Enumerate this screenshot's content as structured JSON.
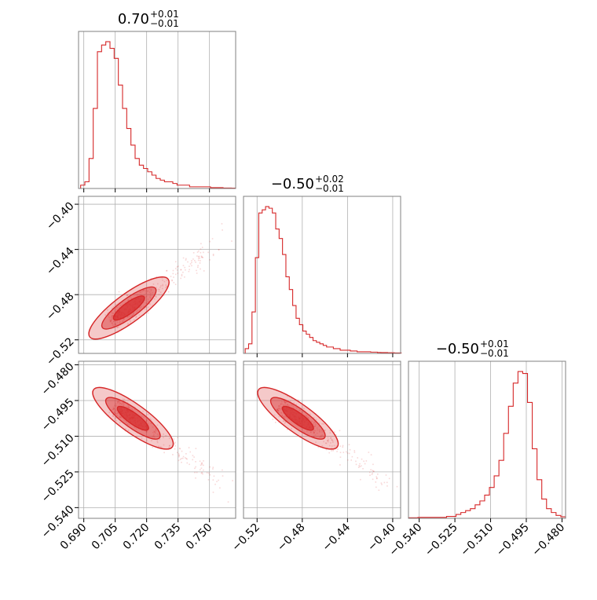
{
  "chart_data": {
    "type": "corner",
    "color": "#d62728",
    "grid": true,
    "parameters": [
      {
        "title_main": "0.70",
        "title_plus": "+0.01",
        "title_minus": "−0.01",
        "range": [
          0.6875,
          0.7625
        ],
        "ticks": [
          0.69,
          0.705,
          0.72,
          0.735,
          0.75
        ],
        "tick_labels": [
          "0.690",
          "0.705",
          "0.720",
          "0.735",
          "0.750"
        ],
        "hist_x": [
          0.6895,
          0.6915,
          0.6935,
          0.6955,
          0.6975,
          0.6995,
          0.7015,
          0.7035,
          0.7055,
          0.7075,
          0.7095,
          0.7115,
          0.7135,
          0.7155,
          0.7175,
          0.7195,
          0.7215,
          0.7235,
          0.7255,
          0.7275,
          0.7295,
          0.7315,
          0.7335,
          0.7355,
          0.7375,
          0.7395,
          0.7415,
          0.7435,
          0.7455,
          0.7475,
          0.7495,
          0.7515,
          0.7535,
          0.7555,
          0.7575,
          0.7595,
          0.7615
        ],
        "hist_y": [
          2,
          4,
          18,
          48,
          82,
          86,
          88,
          84,
          78,
          62,
          48,
          36,
          26,
          18,
          14,
          12,
          10,
          8,
          6,
          5,
          4,
          4,
          3,
          2,
          2,
          2,
          1,
          1,
          1,
          1,
          1,
          0.5,
          0.5,
          0.5,
          0.3,
          0.3,
          0.2
        ]
      },
      {
        "title_main": "−0.50",
        "title_plus": "+0.02",
        "title_minus": "−0.01",
        "range": [
          -0.532,
          -0.393
        ],
        "ticks": [
          -0.52,
          -0.48,
          -0.44,
          -0.4
        ],
        "tick_labels": [
          "−0.52",
          "−0.48",
          "−0.44",
          "−0.40"
        ],
        "hist_x": [
          -0.529,
          -0.526,
          -0.523,
          -0.52,
          -0.517,
          -0.514,
          -0.511,
          -0.508,
          -0.505,
          -0.502,
          -0.499,
          -0.496,
          -0.493,
          -0.49,
          -0.487,
          -0.484,
          -0.481,
          -0.478,
          -0.475,
          -0.472,
          -0.469,
          -0.466,
          -0.463,
          -0.46,
          -0.457,
          -0.454,
          -0.451,
          -0.448,
          -0.445,
          -0.442,
          -0.439,
          -0.436,
          -0.433,
          -0.43,
          -0.427,
          -0.424,
          -0.421,
          -0.418,
          -0.415,
          -0.412,
          -0.409,
          -0.406,
          -0.403,
          -0.4,
          -0.397,
          -0.394
        ],
        "hist_y": [
          3,
          6,
          26,
          60,
          88,
          90,
          92,
          91,
          88,
          78,
          72,
          62,
          48,
          40,
          30,
          22,
          18,
          14,
          12,
          10,
          8,
          7,
          6,
          5,
          4,
          4,
          3,
          3,
          2,
          2,
          2,
          1.5,
          1.5,
          1,
          1,
          1,
          1,
          0.8,
          0.8,
          0.6,
          0.5,
          0.5,
          0.4,
          0.4,
          0.3,
          0.3
        ]
      },
      {
        "title_main": "−0.50",
        "title_plus": "+0.01",
        "title_minus": "−0.01",
        "range": [
          -0.5445,
          -0.4785
        ],
        "ticks": [
          -0.54,
          -0.525,
          -0.51,
          -0.495,
          -0.48
        ],
        "tick_labels": [
          "−0.540",
          "−0.525",
          "−0.510",
          "−0.495",
          "−0.480"
        ],
        "hist_x": [
          -0.5435,
          -0.5415,
          -0.5395,
          -0.5375,
          -0.5355,
          -0.5335,
          -0.5315,
          -0.5295,
          -0.5275,
          -0.5255,
          -0.5235,
          -0.5215,
          -0.5195,
          -0.5175,
          -0.5155,
          -0.5135,
          -0.5115,
          -0.5095,
          -0.5075,
          -0.5055,
          -0.5035,
          -0.5015,
          -0.4995,
          -0.4975,
          -0.4955,
          -0.4935,
          -0.4915,
          -0.4895,
          -0.4875,
          -0.4855,
          -0.4835,
          -0.4815,
          -0.4795
        ],
        "hist_y": [
          0.3,
          0.3,
          0.5,
          0.5,
          0.5,
          0.5,
          0.5,
          0.5,
          1,
          1,
          2,
          3,
          4,
          5,
          7,
          9,
          12,
          16,
          22,
          30,
          44,
          58,
          70,
          76,
          75,
          60,
          36,
          20,
          10,
          5,
          3,
          1.5,
          0.8
        ]
      }
    ],
    "joint_tilts": [
      {
        "pair": "p2_vs_p1",
        "direction": "positive"
      },
      {
        "pair": "p3_vs_p1",
        "direction": "negative"
      },
      {
        "pair": "p3_vs_p2",
        "direction": "negative"
      }
    ]
  }
}
